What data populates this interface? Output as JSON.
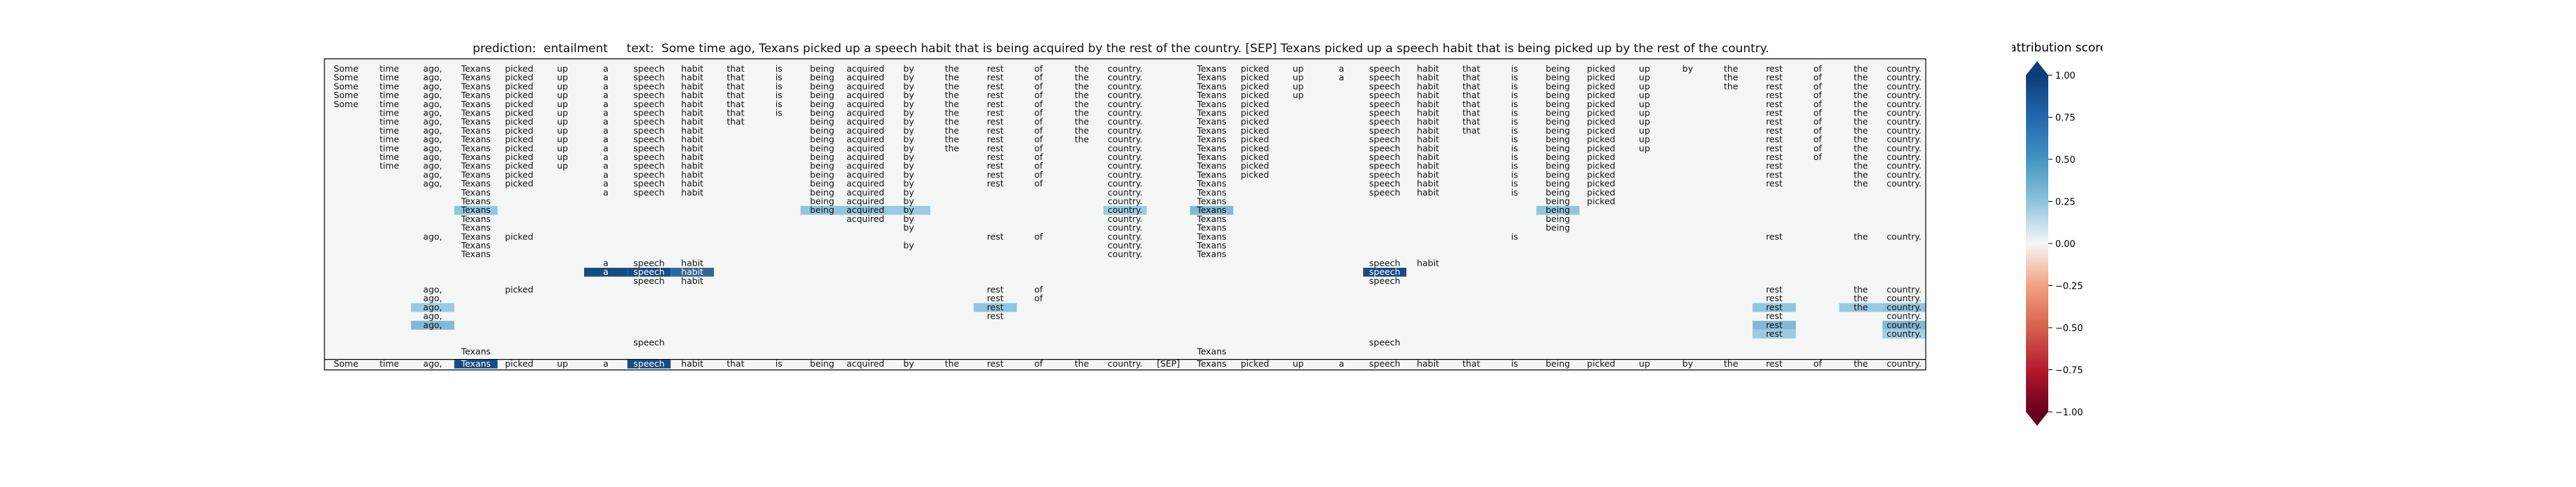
{
  "chart_data": {
    "type": "heatmap",
    "title": {
      "prediction_label": "prediction:",
      "prediction": "entailment",
      "text_label": "text:",
      "text": "Some time ago, Texans picked up a speech habit that is being acquired by the rest of the country. [SEP] Texans picked up a speech habit that is being picked up by the rest of the country."
    },
    "tokens": [
      "Some",
      "time",
      "ago,",
      "Texans",
      "picked",
      "up",
      "a",
      "speech",
      "habit",
      "that",
      "is",
      "being",
      "acquired",
      "by",
      "the",
      "rest",
      "of",
      "the",
      "country.",
      "[SEP]",
      "Texans",
      "picked",
      "up",
      "a",
      "speech",
      "habit",
      "that",
      "is",
      "being",
      "picked",
      "up",
      "by",
      "the",
      "rest",
      "of",
      "the",
      "country."
    ],
    "rows": [
      {
        "show": [
          0,
          1,
          2,
          3,
          4,
          5,
          6,
          7,
          8,
          9,
          10,
          11,
          12,
          13,
          14,
          15,
          16,
          17,
          18,
          20,
          21,
          22,
          23,
          24,
          25,
          26,
          27,
          28,
          29,
          30,
          31,
          32,
          33,
          34,
          35,
          36
        ],
        "hl": {}
      },
      {
        "show": [
          0,
          1,
          2,
          3,
          4,
          5,
          6,
          7,
          8,
          9,
          10,
          11,
          12,
          13,
          14,
          15,
          16,
          17,
          18,
          20,
          21,
          22,
          23,
          24,
          25,
          26,
          27,
          28,
          29,
          30,
          32,
          33,
          34,
          35,
          36
        ],
        "hl": {}
      },
      {
        "show": [
          0,
          1,
          2,
          3,
          4,
          5,
          6,
          7,
          8,
          9,
          10,
          11,
          12,
          13,
          14,
          15,
          16,
          17,
          18,
          20,
          21,
          22,
          24,
          25,
          26,
          27,
          28,
          29,
          30,
          32,
          33,
          34,
          35,
          36
        ],
        "hl": {}
      },
      {
        "show": [
          0,
          1,
          2,
          3,
          4,
          5,
          6,
          7,
          8,
          9,
          10,
          11,
          12,
          13,
          14,
          15,
          16,
          17,
          18,
          20,
          21,
          22,
          24,
          25,
          26,
          27,
          28,
          29,
          30,
          33,
          34,
          35,
          36
        ],
        "hl": {}
      },
      {
        "show": [
          0,
          1,
          2,
          3,
          4,
          5,
          6,
          7,
          8,
          9,
          10,
          11,
          12,
          13,
          14,
          15,
          16,
          17,
          18,
          20,
          21,
          24,
          25,
          26,
          27,
          28,
          29,
          30,
          33,
          34,
          35,
          36
        ],
        "hl": {}
      },
      {
        "show": [
          1,
          2,
          3,
          4,
          5,
          6,
          7,
          8,
          9,
          10,
          11,
          12,
          13,
          14,
          15,
          16,
          17,
          18,
          20,
          21,
          24,
          25,
          26,
          27,
          28,
          29,
          30,
          33,
          34,
          35,
          36
        ],
        "hl": {}
      },
      {
        "show": [
          1,
          2,
          3,
          4,
          5,
          6,
          7,
          8,
          9,
          11,
          12,
          13,
          14,
          15,
          16,
          17,
          18,
          20,
          21,
          24,
          25,
          26,
          27,
          28,
          29,
          30,
          33,
          34,
          35,
          36
        ],
        "hl": {}
      },
      {
        "show": [
          1,
          2,
          3,
          4,
          5,
          6,
          7,
          8,
          11,
          12,
          13,
          14,
          15,
          16,
          17,
          18,
          20,
          21,
          24,
          25,
          26,
          27,
          28,
          29,
          30,
          33,
          34,
          35,
          36
        ],
        "hl": {}
      },
      {
        "show": [
          1,
          2,
          3,
          4,
          5,
          6,
          7,
          8,
          11,
          12,
          13,
          14,
          15,
          16,
          17,
          18,
          20,
          21,
          24,
          25,
          27,
          28,
          29,
          30,
          33,
          34,
          35,
          36
        ],
        "hl": {}
      },
      {
        "show": [
          1,
          2,
          3,
          4,
          5,
          6,
          7,
          8,
          11,
          12,
          13,
          14,
          15,
          16,
          18,
          20,
          21,
          24,
          25,
          27,
          28,
          29,
          30,
          33,
          34,
          35,
          36
        ],
        "hl": {}
      },
      {
        "show": [
          1,
          2,
          3,
          4,
          5,
          6,
          7,
          8,
          11,
          12,
          13,
          15,
          16,
          18,
          20,
          21,
          24,
          25,
          27,
          28,
          29,
          33,
          34,
          35,
          36
        ],
        "hl": {}
      },
      {
        "show": [
          1,
          2,
          3,
          4,
          5,
          6,
          7,
          8,
          11,
          12,
          13,
          15,
          16,
          18,
          20,
          21,
          24,
          25,
          27,
          28,
          29,
          33,
          35,
          36
        ],
        "hl": {}
      },
      {
        "show": [
          2,
          3,
          4,
          6,
          7,
          8,
          11,
          12,
          13,
          15,
          16,
          18,
          20,
          21,
          24,
          25,
          27,
          28,
          29,
          33,
          35,
          36
        ],
        "hl": {}
      },
      {
        "show": [
          2,
          3,
          4,
          6,
          7,
          8,
          11,
          12,
          13,
          15,
          16,
          18,
          20,
          24,
          25,
          27,
          28,
          29,
          33,
          35,
          36
        ],
        "hl": {}
      },
      {
        "show": [
          3,
          6,
          7,
          8,
          11,
          12,
          13,
          18,
          20,
          24,
          25,
          27,
          28,
          29
        ],
        "hl": {}
      },
      {
        "show": [
          3,
          11,
          12,
          13,
          18,
          20,
          28,
          29
        ],
        "hl": {}
      },
      {
        "show": [
          3,
          11,
          12,
          13,
          18,
          20,
          28
        ],
        "hl": {
          "3": 0.5,
          "11": 0.5,
          "12": 0.5,
          "13": 0.45,
          "18": 0.45,
          "20": 0.55,
          "28": 0.5
        }
      },
      {
        "show": [
          3,
          12,
          13,
          18,
          20,
          28
        ],
        "hl": {}
      },
      {
        "show": [
          3,
          13,
          18,
          20,
          28
        ],
        "hl": {}
      },
      {
        "show": [
          2,
          3,
          4,
          15,
          16,
          18,
          20,
          27,
          33,
          35,
          36
        ],
        "hl": {}
      },
      {
        "show": [
          3,
          13,
          18,
          20
        ],
        "hl": {}
      },
      {
        "show": [
          3,
          18,
          20
        ],
        "hl": {}
      },
      {
        "show": [
          6,
          7,
          8,
          24,
          25
        ],
        "hl": {}
      },
      {
        "show": [
          6,
          7,
          8,
          24
        ],
        "hl": {
          "6": 0.95,
          "7": 0.95,
          "8": 0.85,
          "24": 0.95
        }
      },
      {
        "show": [
          7,
          8,
          24
        ],
        "hl": {}
      },
      {
        "show": [
          2,
          4,
          15,
          16,
          33,
          35,
          36
        ],
        "hl": {}
      },
      {
        "show": [
          2,
          15,
          16,
          33,
          35,
          36
        ],
        "hl": {}
      },
      {
        "show": [
          2,
          15,
          33,
          35,
          36
        ],
        "hl": {
          "2": 0.45,
          "15": 0.5,
          "33": 0.5,
          "35": 0.45,
          "36": 0.5
        }
      },
      {
        "show": [
          2,
          15,
          33,
          36
        ],
        "hl": {}
      },
      {
        "show": [
          2,
          33,
          36
        ],
        "hl": {
          "2": 0.55,
          "33": 0.55,
          "36": 0.55
        }
      },
      {
        "show": [
          33,
          36
        ],
        "hl": {
          "33": 0.45,
          "36": 0.4
        }
      },
      {
        "show": [
          7,
          24
        ],
        "hl": {}
      },
      {
        "show": [
          3,
          20
        ],
        "hl": {}
      }
    ],
    "bottom_row": {
      "show": [
        0,
        1,
        2,
        3,
        4,
        5,
        6,
        7,
        8,
        9,
        10,
        11,
        12,
        13,
        14,
        15,
        16,
        17,
        18,
        19,
        20,
        21,
        22,
        23,
        24,
        25,
        26,
        27,
        28,
        29,
        30,
        31,
        32,
        33,
        34,
        35,
        36
      ],
      "hl": {
        "3": 0.95,
        "7": 0.95
      }
    },
    "colorbar": {
      "label": "attribution score",
      "ticks": [
        "1.00",
        "0.75",
        "0.50",
        "0.25",
        "0.00",
        "−0.25",
        "−0.50",
        "−0.75",
        "−1.00"
      ],
      "range": [
        -1,
        1
      ],
      "colormap": "RdBu"
    },
    "colors": {
      "positive_strong": "#0b3d76",
      "positive_mid": "#4a90c2",
      "neutral": "#f4f6f6",
      "negative_strong": "#6b0a23",
      "text_dark": "#111111",
      "text_light": "#ffffff"
    }
  }
}
